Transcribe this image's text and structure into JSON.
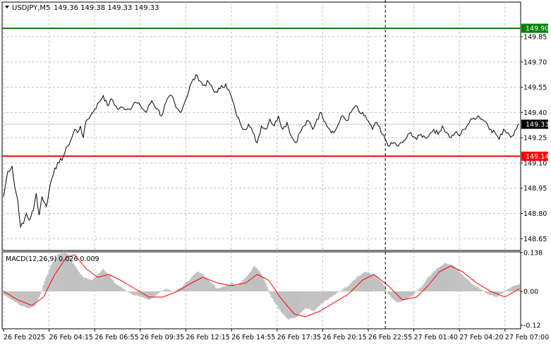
{
  "header": {
    "symbol": "USDJPY,M5",
    "ohlc": "149.36 149.38 149.33 149.33"
  },
  "macd_label": "MACD(12,26,9) 0.026 0.009",
  "colors": {
    "background": "#ffffff",
    "grid": "#c0c0c0",
    "price_line": "#000000",
    "resistance_line": "#008000",
    "support_line": "#ff0000",
    "macd_histogram": "#c0c0c0",
    "macd_signal": "#ff0000"
  },
  "chart_data": [
    {
      "type": "line",
      "name": "price",
      "ylim": [
        148.58,
        149.98
      ],
      "y_ticks": [
        "149.85",
        "149.70",
        "149.55",
        "149.40",
        "149.25",
        "149.10",
        "148.95",
        "148.80",
        "148.65"
      ],
      "y_tick_values": [
        149.85,
        149.7,
        149.55,
        149.4,
        149.25,
        149.1,
        148.95,
        148.8,
        148.65
      ],
      "x_labels": [
        "26 Feb 2025",
        "26 Feb 04:15",
        "26 Feb 06:55",
        "26 Feb 09:35",
        "26 Feb 12:15",
        "26 Feb 14:55",
        "26 Feb 17:35",
        "26 Feb 20:15",
        "26 Feb 22:55",
        "27 Feb 01:40",
        "27 Feb 04:20",
        "27 Feb 07:00"
      ],
      "x_label_index": [
        0,
        32,
        64,
        96,
        128,
        160,
        192,
        224,
        256,
        288,
        320,
        352
      ],
      "bar_count": 363,
      "price_points": [
        [
          0,
          148.9
        ],
        [
          3,
          149.05
        ],
        [
          6,
          149.08
        ],
        [
          8,
          148.95
        ],
        [
          10,
          148.88
        ],
        [
          12,
          148.72
        ],
        [
          14,
          148.74
        ],
        [
          16,
          148.8
        ],
        [
          18,
          148.76
        ],
        [
          21,
          148.82
        ],
        [
          23,
          148.92
        ],
        [
          25,
          148.79
        ],
        [
          27,
          148.9
        ],
        [
          30,
          148.84
        ],
        [
          33,
          148.98
        ],
        [
          36,
          149.07
        ],
        [
          39,
          149.1
        ],
        [
          42,
          149.14
        ],
        [
          45,
          149.2
        ],
        [
          48,
          149.25
        ],
        [
          50,
          149.3
        ],
        [
          52,
          149.28
        ],
        [
          54,
          149.32
        ],
        [
          56,
          149.25
        ],
        [
          58,
          149.35
        ],
        [
          61,
          149.38
        ],
        [
          64,
          149.42
        ],
        [
          67,
          149.46
        ],
        [
          70,
          149.5
        ],
        [
          73,
          149.44
        ],
        [
          76,
          149.48
        ],
        [
          80,
          149.42
        ],
        [
          84,
          149.43
        ],
        [
          88,
          149.42
        ],
        [
          92,
          149.46
        ],
        [
          96,
          149.44
        ],
        [
          100,
          149.4
        ],
        [
          104,
          149.47
        ],
        [
          108,
          149.42
        ],
        [
          111,
          149.38
        ],
        [
          114,
          149.46
        ],
        [
          118,
          149.5
        ],
        [
          121,
          149.43
        ],
        [
          124,
          149.4
        ],
        [
          128,
          149.48
        ],
        [
          132,
          149.58
        ],
        [
          136,
          149.62
        ],
        [
          140,
          149.56
        ],
        [
          144,
          149.58
        ],
        [
          148,
          149.52
        ],
        [
          152,
          149.54
        ],
        [
          156,
          149.57
        ],
        [
          160,
          149.49
        ],
        [
          163,
          149.4
        ],
        [
          166,
          149.34
        ],
        [
          169,
          149.3
        ],
        [
          172,
          149.33
        ],
        [
          175,
          149.28
        ],
        [
          178,
          149.22
        ],
        [
          181,
          149.32
        ],
        [
          184,
          149.3
        ],
        [
          187,
          149.36
        ],
        [
          190,
          149.32
        ],
        [
          193,
          149.38
        ],
        [
          196,
          149.3
        ],
        [
          199,
          149.34
        ],
        [
          202,
          149.26
        ],
        [
          205,
          149.22
        ],
        [
          208,
          149.28
        ],
        [
          211,
          149.32
        ],
        [
          214,
          149.35
        ],
        [
          217,
          149.3
        ],
        [
          220,
          149.36
        ],
        [
          223,
          149.4
        ],
        [
          226,
          149.34
        ],
        [
          229,
          149.3
        ],
        [
          232,
          149.28
        ],
        [
          235,
          149.33
        ],
        [
          238,
          149.38
        ],
        [
          241,
          149.35
        ],
        [
          244,
          149.4
        ],
        [
          247,
          149.44
        ],
        [
          250,
          149.4
        ],
        [
          253,
          149.38
        ],
        [
          256,
          149.35
        ],
        [
          259,
          149.3
        ],
        [
          262,
          149.34
        ],
        [
          265,
          149.28
        ],
        [
          268,
          149.24
        ],
        [
          271,
          149.2
        ],
        [
          274,
          149.22
        ],
        [
          277,
          149.2
        ],
        [
          280,
          149.22
        ],
        [
          283,
          149.25
        ],
        [
          286,
          149.28
        ],
        [
          290,
          149.24
        ],
        [
          293,
          149.27
        ],
        [
          296,
          149.25
        ],
        [
          299,
          149.27
        ],
        [
          302,
          149.3
        ],
        [
          305,
          149.27
        ],
        [
          308,
          149.32
        ],
        [
          311,
          149.28
        ],
        [
          314,
          149.25
        ],
        [
          317,
          149.28
        ],
        [
          320,
          149.26
        ],
        [
          323,
          149.3
        ],
        [
          326,
          149.33
        ],
        [
          329,
          149.36
        ],
        [
          333,
          149.38
        ],
        [
          336,
          149.36
        ],
        [
          339,
          149.34
        ],
        [
          342,
          149.3
        ],
        [
          345,
          149.28
        ],
        [
          348,
          149.24
        ],
        [
          351,
          149.3
        ],
        [
          354,
          149.28
        ],
        [
          357,
          149.26
        ],
        [
          360,
          149.3
        ],
        [
          362,
          149.33
        ]
      ],
      "levels": [
        {
          "value": 149.9,
          "label": "149.90",
          "color": "#008000"
        },
        {
          "value": 149.14,
          "label": "149.14",
          "color": "#ff0000"
        }
      ],
      "last_price": {
        "value": 149.33,
        "label": "149.33"
      },
      "vertical_marker_index": 268,
      "grid": true
    },
    {
      "type": "bar",
      "name": "MACD(12,26,9)",
      "ylim": [
        -0.13,
        0.14
      ],
      "y_ticks": [
        "0.138",
        "0.00",
        "-0.12"
      ],
      "y_tick_values": [
        0.138,
        0.0,
        -0.12
      ],
      "histogram_points": [
        [
          0,
          -0.01
        ],
        [
          6,
          -0.03
        ],
        [
          12,
          -0.05
        ],
        [
          18,
          -0.06
        ],
        [
          22,
          -0.05
        ],
        [
          26,
          -0.01
        ],
        [
          30,
          0.05
        ],
        [
          34,
          0.1
        ],
        [
          38,
          0.13
        ],
        [
          42,
          0.14
        ],
        [
          46,
          0.13
        ],
        [
          50,
          0.09
        ],
        [
          56,
          0.05
        ],
        [
          62,
          0.04
        ],
        [
          66,
          0.06
        ],
        [
          70,
          0.08
        ],
        [
          74,
          0.06
        ],
        [
          78,
          0.03
        ],
        [
          84,
          0.01
        ],
        [
          90,
          -0.01
        ],
        [
          96,
          -0.02
        ],
        [
          102,
          -0.03
        ],
        [
          108,
          -0.01
        ],
        [
          114,
          0.01
        ],
        [
          120,
          0.0
        ],
        [
          126,
          0.02
        ],
        [
          132,
          0.05
        ],
        [
          136,
          0.07
        ],
        [
          140,
          0.06
        ],
        [
          144,
          0.04
        ],
        [
          150,
          0.01
        ],
        [
          156,
          0.02
        ],
        [
          160,
          0.03
        ],
        [
          164,
          0.02
        ],
        [
          168,
          0.04
        ],
        [
          172,
          0.06
        ],
        [
          176,
          0.09
        ],
        [
          180,
          0.07
        ],
        [
          184,
          0.03
        ],
        [
          188,
          -0.02
        ],
        [
          192,
          -0.05
        ],
        [
          196,
          -0.08
        ],
        [
          200,
          -0.1
        ],
        [
          206,
          -0.09
        ],
        [
          212,
          -0.06
        ],
        [
          218,
          -0.07
        ],
        [
          224,
          -0.04
        ],
        [
          230,
          -0.02
        ],
        [
          236,
          0.0
        ],
        [
          242,
          0.02
        ],
        [
          248,
          0.05
        ],
        [
          254,
          0.07
        ],
        [
          260,
          0.06
        ],
        [
          266,
          0.03
        ],
        [
          270,
          -0.01
        ],
        [
          276,
          -0.04
        ],
        [
          282,
          -0.03
        ],
        [
          288,
          -0.01
        ],
        [
          294,
          0.02
        ],
        [
          298,
          0.05
        ],
        [
          304,
          0.08
        ],
        [
          310,
          0.1
        ],
        [
          316,
          0.09
        ],
        [
          322,
          0.06
        ],
        [
          328,
          0.03
        ],
        [
          334,
          0.01
        ],
        [
          340,
          -0.01
        ],
        [
          346,
          -0.02
        ],
        [
          352,
          0.0
        ],
        [
          358,
          0.02
        ],
        [
          362,
          0.026
        ]
      ],
      "signal_points": [
        [
          0,
          0.0
        ],
        [
          10,
          -0.03
        ],
        [
          20,
          -0.05
        ],
        [
          28,
          -0.02
        ],
        [
          36,
          0.06
        ],
        [
          44,
          0.12
        ],
        [
          50,
          0.13
        ],
        [
          58,
          0.08
        ],
        [
          66,
          0.05
        ],
        [
          74,
          0.06
        ],
        [
          82,
          0.04
        ],
        [
          92,
          0.01
        ],
        [
          102,
          -0.02
        ],
        [
          112,
          -0.02
        ],
        [
          122,
          0.0
        ],
        [
          132,
          0.03
        ],
        [
          140,
          0.05
        ],
        [
          150,
          0.03
        ],
        [
          160,
          0.02
        ],
        [
          170,
          0.03
        ],
        [
          178,
          0.06
        ],
        [
          186,
          0.04
        ],
        [
          194,
          -0.02
        ],
        [
          204,
          -0.08
        ],
        [
          212,
          -0.09
        ],
        [
          222,
          -0.07
        ],
        [
          232,
          -0.04
        ],
        [
          242,
          -0.01
        ],
        [
          252,
          0.04
        ],
        [
          260,
          0.06
        ],
        [
          270,
          0.02
        ],
        [
          280,
          -0.03
        ],
        [
          290,
          -0.02
        ],
        [
          298,
          0.02
        ],
        [
          306,
          0.07
        ],
        [
          314,
          0.09
        ],
        [
          322,
          0.07
        ],
        [
          332,
          0.03
        ],
        [
          342,
          0.0
        ],
        [
          352,
          -0.02
        ],
        [
          362,
          0.009
        ]
      ]
    }
  ]
}
